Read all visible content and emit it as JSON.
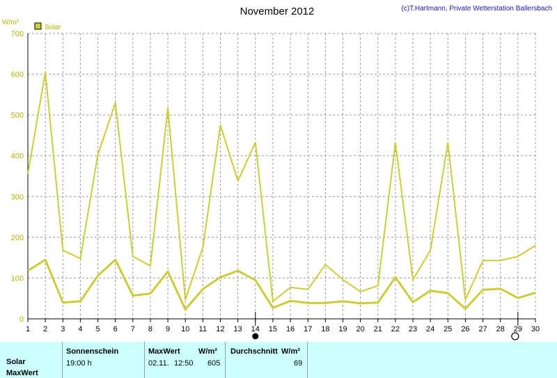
{
  "chart_data": {
    "type": "line",
    "title": "November 2012",
    "copyright": "(c)T.Hartmann, Private Wetterstation Ballersbach",
    "ylabel": "W/m²",
    "ylim": [
      0,
      700
    ],
    "yticks": [
      0,
      100,
      200,
      300,
      400,
      500,
      600,
      700
    ],
    "x": [
      1,
      2,
      3,
      4,
      5,
      6,
      7,
      8,
      9,
      10,
      11,
      12,
      13,
      14,
      15,
      16,
      17,
      18,
      19,
      20,
      21,
      22,
      23,
      24,
      25,
      26,
      27,
      28,
      29,
      30
    ],
    "legend": "Solar",
    "grid": true,
    "colors": {
      "line": "#cccc33",
      "legend_fill": "#cccc33",
      "axis": "#000000",
      "grid": "#999999"
    },
    "series": [
      {
        "role": "max",
        "values": [
          355,
          605,
          168,
          148,
          403,
          530,
          153,
          130,
          517,
          47,
          175,
          475,
          338,
          433,
          43,
          77,
          72,
          133,
          96,
          67,
          81,
          432,
          96,
          168,
          432,
          47,
          143,
          143,
          153,
          180
        ]
      },
      {
        "role": "mean",
        "values": [
          118,
          145,
          40,
          43,
          106,
          145,
          57,
          62,
          116,
          23,
          73,
          102,
          118,
          95,
          27,
          44,
          39,
          39,
          43,
          38,
          40,
          102,
          41,
          69,
          63,
          25,
          71,
          74,
          51,
          64
        ]
      }
    ],
    "markers": [
      {
        "day": 14,
        "type": "full-moon-dot"
      },
      {
        "day": 29,
        "type": "new-moon-circle"
      }
    ]
  },
  "summary": {
    "row_label_1": "Solar",
    "row_label_2": "MaxWert",
    "sonnenschein_header": "Sonnenschein",
    "sonnenschein_value": "19:00 h",
    "maxwert_header": "MaxWert",
    "maxwert_unit": "W/m²",
    "maxwert_date": "02.11.",
    "maxwert_time": "12:50",
    "maxwert_value": "605",
    "durchschnitt_header": "Durchschnitt",
    "durchschnitt_unit": "W/m²",
    "durchschnitt_value": "69"
  }
}
